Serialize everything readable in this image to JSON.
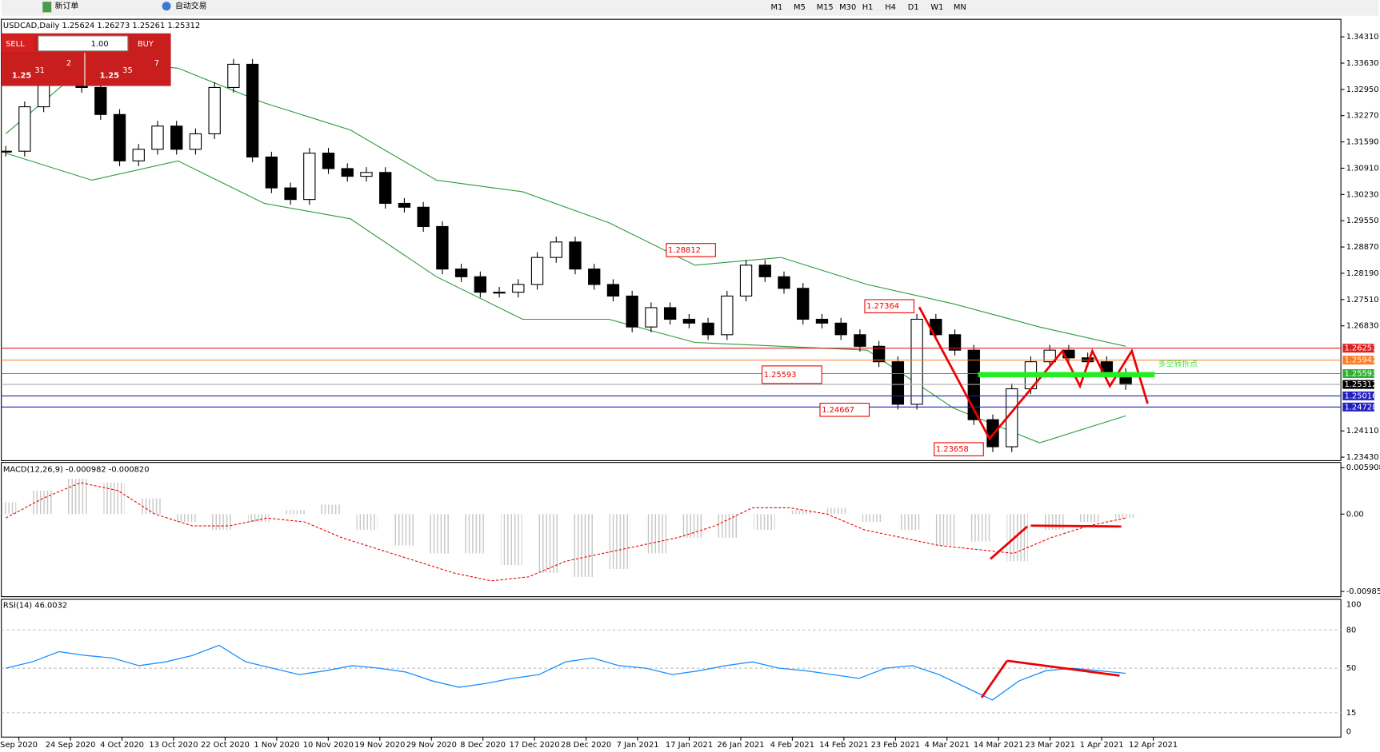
{
  "toolbar": {
    "new_order": "新订单",
    "auto_trade": "自动交易",
    "timeframes": [
      "M1",
      "M5",
      "M15",
      "M30",
      "H1",
      "H4",
      "D1",
      "W1",
      "MN"
    ]
  },
  "symbol_line": "USDCAD,Daily 1.25624 1.26273 1.25261 1.25312",
  "trade_panel": {
    "sell": "SELL",
    "buy": "BUY",
    "lots": "1.00",
    "sell_big": "1.25",
    "sell_digits": "31",
    "sell_pip": "2",
    "buy_big": "1.25",
    "buy_digits": "35",
    "buy_pip": "7"
  },
  "price": {
    "ticks": [
      {
        "value": 1.3431,
        "label": "1.34310"
      },
      {
        "value": 1.3363,
        "label": "1.33630"
      },
      {
        "value": 1.3295,
        "label": "1.32950"
      },
      {
        "value": 1.3227,
        "label": "1.32270"
      },
      {
        "value": 1.3159,
        "label": "1.31590"
      },
      {
        "value": 1.3091,
        "label": "1.30910"
      },
      {
        "value": 1.3023,
        "label": "1.30230"
      },
      {
        "value": 1.2955,
        "label": "1.29550"
      },
      {
        "value": 1.2887,
        "label": "1.28870"
      },
      {
        "value": 1.2819,
        "label": "1.28190"
      },
      {
        "value": 1.2751,
        "label": "1.27510"
      },
      {
        "value": 1.2683,
        "label": "1.26830"
      },
      {
        "value": 1.2411,
        "label": "1.24110"
      },
      {
        "value": 1.2343,
        "label": "1.23430"
      }
    ],
    "levels": [
      {
        "value": 1.26251,
        "label": "1.26251",
        "color": "#e02020"
      },
      {
        "value": 1.25942,
        "label": "1.25942",
        "color": "#ff7a20"
      },
      {
        "value": 1.25593,
        "label": "1.25593",
        "color": "#30b030"
      },
      {
        "value": 1.25312,
        "label": "1.25312",
        "color": "#000000"
      },
      {
        "value": 1.25016,
        "label": "1.25016",
        "color": "#2020c0"
      },
      {
        "value": 1.24728,
        "label": "1.24728",
        "color": "#2020c0"
      }
    ],
    "closes": [
      1.3135,
      1.325,
      1.332,
      1.333,
      1.33,
      1.323,
      1.311,
      1.314,
      1.32,
      1.314,
      1.318,
      1.33,
      1.336,
      1.312,
      1.304,
      1.301,
      1.313,
      1.309,
      1.307,
      1.308,
      1.3,
      1.299,
      1.294,
      1.283,
      1.281,
      1.277,
      1.277,
      1.279,
      1.286,
      1.29,
      1.283,
      1.279,
      1.276,
      1.268,
      1.273,
      1.27,
      1.269,
      1.266,
      1.276,
      1.284,
      1.281,
      1.278,
      1.27,
      1.269,
      1.266,
      1.263,
      1.259,
      1.248,
      1.27,
      1.266,
      1.262,
      1.244,
      1.237,
      1.252,
      1.259,
      1.262,
      1.26,
      1.259,
      1.256,
      1.2531
    ],
    "upper_band": [
      1.318,
      1.337,
      1.335,
      1.326,
      1.319,
      1.306,
      1.303,
      1.295,
      1.284,
      1.286,
      1.279,
      1.274,
      1.268,
      1.263
    ],
    "lower_band": [
      1.313,
      1.306,
      1.311,
      1.3,
      1.296,
      1.281,
      1.27,
      1.27,
      1.264,
      1.263,
      1.262,
      1.247,
      1.238,
      1.245
    ],
    "annotations": [
      {
        "value": 1.28812,
        "label": "1.28812"
      },
      {
        "value": 1.27364,
        "label": "1.27364"
      },
      {
        "value": 1.25593,
        "label": "1.25593"
      },
      {
        "value": 1.24667,
        "label": "1.24667"
      },
      {
        "value": 1.23658,
        "label": "1.23658"
      }
    ],
    "note": "多空转折点"
  },
  "macd": {
    "label": "MACD(12,26,9) -0.000982 -0.000820",
    "ticks": [
      0.005908,
      {
        "value": 0,
        "label": "0.00"
      },
      -0.009851
    ],
    "hist": [
      0.0015,
      0.003,
      0.0045,
      0.004,
      0.002,
      -0.001,
      -0.002,
      -0.001,
      0.0005,
      0.0012,
      -0.002,
      -0.004,
      -0.005,
      -0.005,
      -0.0065,
      -0.0075,
      -0.008,
      -0.007,
      -0.005,
      -0.003,
      -0.003,
      -0.002,
      0.0005,
      0.0008,
      -0.001,
      -0.002,
      -0.004,
      -0.0035,
      -0.006,
      -0.002,
      -0.001,
      -0.0005
    ],
    "signal": [
      -0.0005,
      0.002,
      0.004,
      0.003,
      0,
      -0.0015,
      -0.0015,
      -0.0005,
      -0.001,
      -0.003,
      -0.0045,
      -0.006,
      -0.0075,
      -0.0085,
      -0.008,
      -0.006,
      -0.005,
      -0.004,
      -0.003,
      -0.0015,
      0.0008,
      0.0008,
      0,
      -0.002,
      -0.003,
      -0.004,
      -0.0045,
      -0.005,
      -0.003,
      -0.0015,
      -0.0005
    ]
  },
  "rsi": {
    "label": "RSI(14) 46.0032",
    "ticks": [
      100,
      80,
      50,
      15,
      0
    ],
    "values": [
      50,
      55,
      63,
      60,
      58,
      52,
      55,
      60,
      68,
      55,
      50,
      45,
      48,
      52,
      50,
      47,
      40,
      35,
      38,
      42,
      45,
      55,
      58,
      52,
      50,
      45,
      48,
      52,
      55,
      50,
      48,
      45,
      42,
      50,
      52,
      45,
      35,
      25,
      40,
      48,
      50,
      48,
      46
    ]
  },
  "dates": [
    "Sep 2020",
    "24 Sep 2020",
    "4 Oct 2020",
    "13 Oct 2020",
    "22 Oct 2020",
    "1 Nov 2020",
    "10 Nov 2020",
    "19 Nov 2020",
    "29 Nov 2020",
    "8 Dec 2020",
    "17 Dec 2020",
    "28 Dec 2020",
    "7 Jan 2021",
    "17 Jan 2021",
    "26 Jan 2021",
    "4 Feb 2021",
    "14 Feb 2021",
    "23 Feb 2021",
    "4 Mar 2021",
    "14 Mar 2021",
    "23 Mar 2021",
    "1 Apr 2021",
    "12 Apr 2021"
  ]
}
